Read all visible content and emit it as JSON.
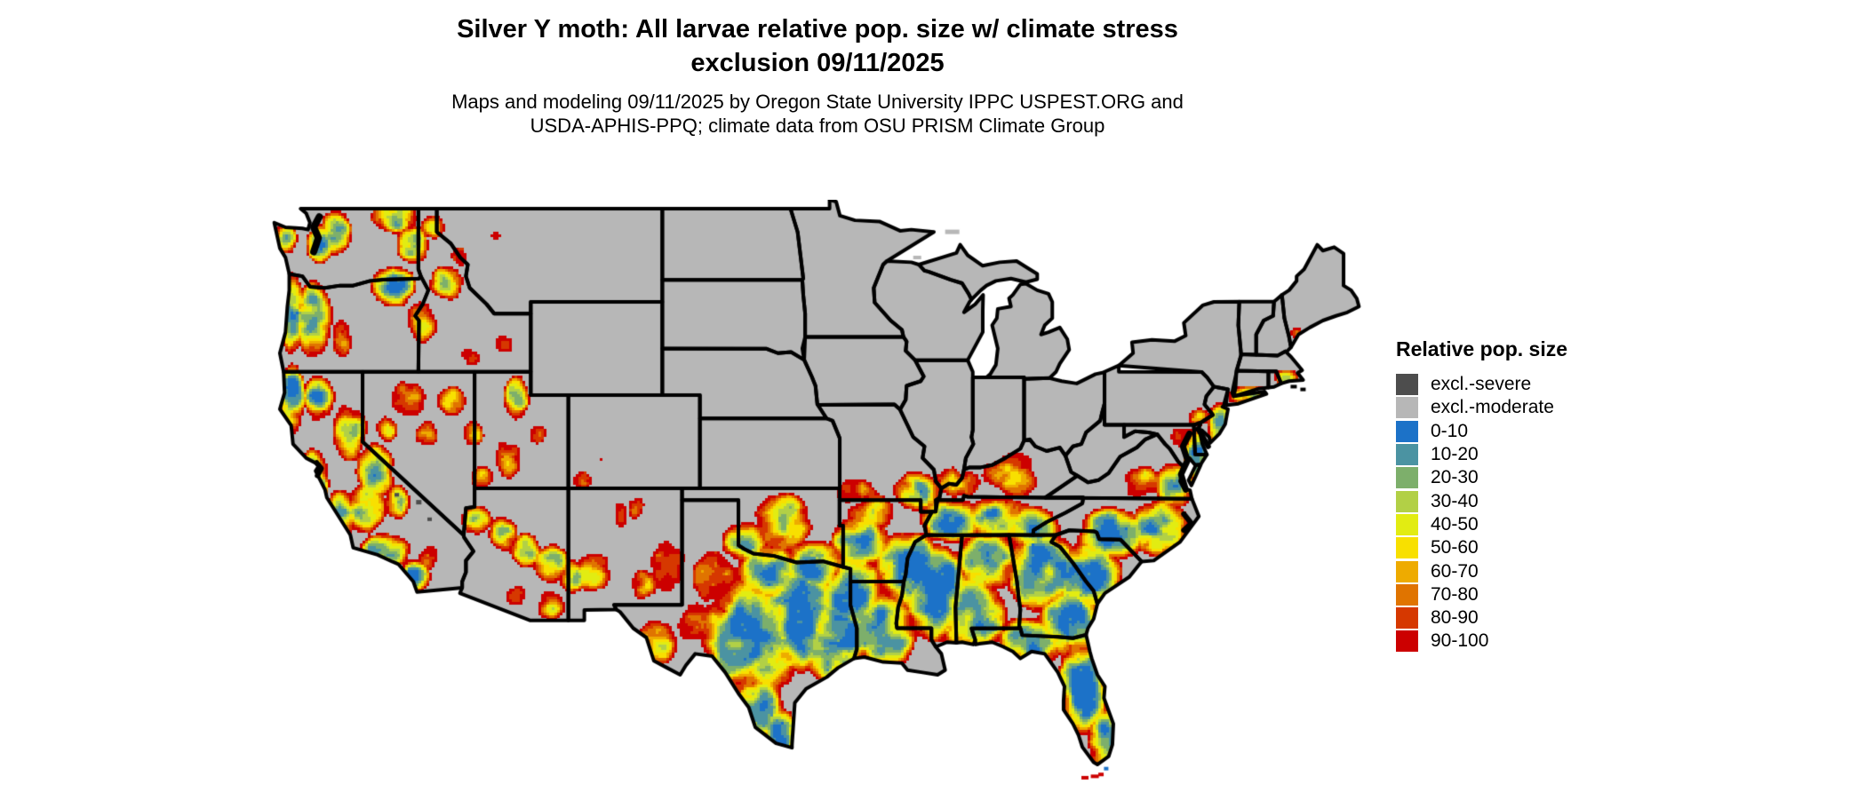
{
  "title": {
    "line1": "Silver Y moth: All larvae relative pop. size w/ climate stress",
    "line2": "exclusion 09/11/2025"
  },
  "subtitle": {
    "line1": "Maps and modeling 09/11/2025 by Oregon State University IPPC USPEST.ORG and",
    "line2": "USDA-APHIS-PPQ; climate data from OSU PRISM Climate Group"
  },
  "legend": {
    "title": "Relative pop. size",
    "items": [
      {
        "label": "excl.-severe",
        "color": "#4d4d4d"
      },
      {
        "label": "excl.-moderate",
        "color": "#b7b7b7"
      },
      {
        "label": "0-10",
        "color": "#1c72c8"
      },
      {
        "label": "10-20",
        "color": "#4b93a2"
      },
      {
        "label": "20-30",
        "color": "#7daf6b"
      },
      {
        "label": "30-40",
        "color": "#b2d046"
      },
      {
        "label": "40-50",
        "color": "#e2ec12"
      },
      {
        "label": "50-60",
        "color": "#f8e000"
      },
      {
        "label": "60-70",
        "color": "#eeab00"
      },
      {
        "label": "70-80",
        "color": "#e07400"
      },
      {
        "label": "80-90",
        "color": "#d63800"
      },
      {
        "label": "90-100",
        "color": "#cc0000"
      }
    ]
  },
  "map": {
    "excluded_land_color": "#b7b7b7",
    "border_color": "#000000",
    "background_color": "#ffffff"
  }
}
